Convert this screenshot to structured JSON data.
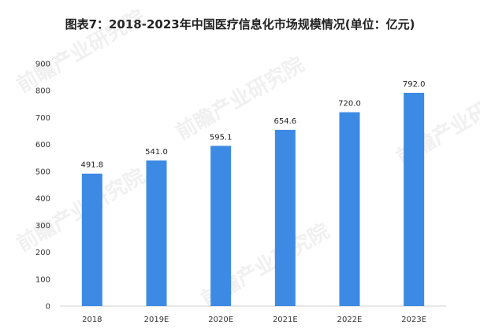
{
  "title": "图表7：2018-2023年中国医疗信息化市场规模情况(单位：亿元)",
  "chart_data": {
    "type": "bar",
    "categories": [
      "2018",
      "2019E",
      "2020E",
      "2021E",
      "2022E",
      "2023E"
    ],
    "values": [
      491.8,
      541.0,
      595.1,
      654.6,
      720.0,
      792.0
    ],
    "value_labels": [
      "491.8",
      "541.0",
      "595.1",
      "654.6",
      "720.0",
      "792.0"
    ],
    "ylim": [
      0,
      900
    ],
    "yticks": [
      "0",
      "100",
      "200",
      "300",
      "400",
      "500",
      "600",
      "700",
      "800",
      "900"
    ],
    "xlabel": "",
    "ylabel": "",
    "grid": false,
    "bar_color": "#3d8ae5"
  },
  "watermark": {
    "name": "前瞻产业研究院"
  }
}
